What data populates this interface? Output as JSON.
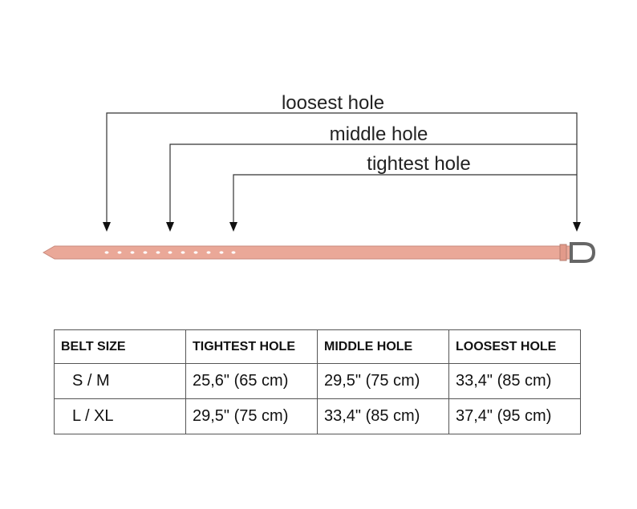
{
  "labels": {
    "loosest": "loosest hole",
    "middle": "middle hole",
    "tightest": "tightest hole"
  },
  "table": {
    "header": [
      "BELT SIZE",
      "TIGHTEST HOLE",
      "MIDDLE HOLE",
      "LOOSEST HOLE"
    ],
    "rows": [
      [
        "S / M",
        "25,6\" (65 cm)",
        "29,5\" (75 cm)",
        "33,4\" (85 cm)"
      ],
      [
        "L / XL",
        "29,5\" (75 cm)",
        "33,4\" (85 cm)",
        "37,4\" (95 cm)"
      ]
    ]
  }
}
